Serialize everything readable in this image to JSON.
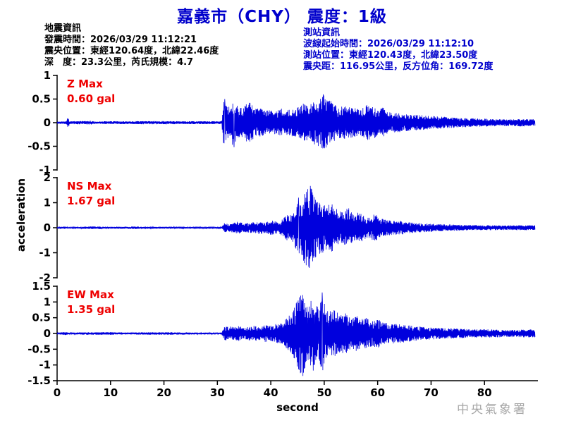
{
  "info_left": {
    "heading": "地震資訊",
    "lines": [
      "發震時間：2026/03/29 11:12:21",
      "震央位置：東經120.64度，北緯22.46度",
      "深　度：23.3公里，芮氏規模：4.7"
    ]
  },
  "info_right": {
    "heading": "測站資訊",
    "lines": [
      "波線起始時間：2026/03/29 11:12:10",
      "測站位置：東經120.43度，北緯23.50度",
      "震央距：116.95公里，反方位角：169.72度"
    ]
  },
  "footer": {
    "agency": "中央氣象署"
  },
  "chart_data": {
    "type": "line",
    "title": "嘉義市（CHY） 震度：1級",
    "intensity": "1級",
    "station_code": "CHY",
    "xlabel": "second",
    "ylabel": "acceleration",
    "x_range": [
      0,
      90
    ],
    "x_ticks": [
      0,
      10,
      20,
      30,
      40,
      50,
      60,
      70,
      80
    ],
    "grid": false,
    "trace_color": "#0000dd",
    "axis_color": "#000000",
    "max_label_color": "#ee0000",
    "series": [
      {
        "name": "Z",
        "max_label": "Z Max",
        "max_text": "0.60 gal",
        "max_value": 0.6,
        "unit": "gal",
        "ylim": [
          -1,
          1
        ],
        "yticks": [
          1,
          0.5,
          0,
          -0.5,
          -1
        ],
        "envelope": [
          [
            0,
            0.02
          ],
          [
            1.7,
            0.03
          ],
          [
            2.0,
            0.12
          ],
          [
            2.4,
            0.03
          ],
          [
            6.5,
            0.04
          ],
          [
            7.2,
            0.02
          ],
          [
            9,
            0.03
          ],
          [
            14,
            0.03
          ],
          [
            18,
            0.035
          ],
          [
            24,
            0.03
          ],
          [
            28,
            0.03
          ],
          [
            30.8,
            0.03
          ],
          [
            31.2,
            0.5
          ],
          [
            32,
            0.32
          ],
          [
            33,
            0.5
          ],
          [
            34,
            0.3
          ],
          [
            35,
            0.35
          ],
          [
            36,
            0.45
          ],
          [
            37,
            0.3
          ],
          [
            38,
            0.3
          ],
          [
            39,
            0.25
          ],
          [
            40,
            0.28
          ],
          [
            41,
            0.24
          ],
          [
            42,
            0.3
          ],
          [
            43,
            0.26
          ],
          [
            44,
            0.3
          ],
          [
            45,
            0.32
          ],
          [
            46,
            0.42
          ],
          [
            47,
            0.36
          ],
          [
            48,
            0.46
          ],
          [
            49,
            0.5
          ],
          [
            49.8,
            0.62
          ],
          [
            50.6,
            0.48
          ],
          [
            51.5,
            0.45
          ],
          [
            52.5,
            0.32
          ],
          [
            54,
            0.36
          ],
          [
            55.5,
            0.3
          ],
          [
            57,
            0.32
          ],
          [
            58.5,
            0.4
          ],
          [
            60,
            0.28
          ],
          [
            61,
            0.32
          ],
          [
            62,
            0.22
          ],
          [
            64,
            0.2
          ],
          [
            66,
            0.17
          ],
          [
            68,
            0.16
          ],
          [
            70,
            0.14
          ],
          [
            72,
            0.13
          ],
          [
            75,
            0.1
          ],
          [
            78,
            0.09
          ],
          [
            81,
            0.08
          ],
          [
            84,
            0.07
          ],
          [
            87,
            0.08
          ],
          [
            89.5,
            0.07
          ]
        ],
        "peaks": [
          {
            "t": 49.8,
            "v": 0.6
          },
          {
            "t": 33.1,
            "v": -0.52
          },
          {
            "t": 31.4,
            "v": 0.5
          }
        ]
      },
      {
        "name": "NS",
        "max_label": "NS Max",
        "max_text": "1.67 gal",
        "max_value": 1.67,
        "unit": "gal",
        "ylim": [
          -2,
          2
        ],
        "yticks": [
          2,
          1,
          0,
          -1,
          -2
        ],
        "envelope": [
          [
            0,
            0.02
          ],
          [
            1.3,
            0.05
          ],
          [
            2.1,
            0.02
          ],
          [
            6,
            0.05
          ],
          [
            8,
            0.05
          ],
          [
            9,
            0.03
          ],
          [
            15,
            0.05
          ],
          [
            16,
            0.03
          ],
          [
            21,
            0.04
          ],
          [
            25,
            0.03
          ],
          [
            30.8,
            0.03
          ],
          [
            31.3,
            0.18
          ],
          [
            32,
            0.15
          ],
          [
            33,
            0.2
          ],
          [
            34,
            0.25
          ],
          [
            35,
            0.17
          ],
          [
            36,
            0.2
          ],
          [
            37,
            0.22
          ],
          [
            38,
            0.26
          ],
          [
            39,
            0.2
          ],
          [
            40,
            0.3
          ],
          [
            41,
            0.24
          ],
          [
            42,
            0.3
          ],
          [
            43,
            0.5
          ],
          [
            44,
            0.55
          ],
          [
            45,
            0.95
          ],
          [
            46,
            1.35
          ],
          [
            46.7,
            1.55
          ],
          [
            47.4,
            1.67
          ],
          [
            48,
            1.35
          ],
          [
            48.7,
            1.15
          ],
          [
            49.5,
            1.05
          ],
          [
            50.5,
            0.9
          ],
          [
            51.5,
            0.95
          ],
          [
            52.5,
            0.7
          ],
          [
            53.5,
            0.62
          ],
          [
            54.5,
            0.8
          ],
          [
            55.5,
            0.55
          ],
          [
            56.5,
            0.65
          ],
          [
            57.5,
            0.45
          ],
          [
            58.5,
            0.42
          ],
          [
            59.5,
            0.55
          ],
          [
            60.5,
            0.38
          ],
          [
            62,
            0.3
          ],
          [
            64,
            0.28
          ],
          [
            66,
            0.22
          ],
          [
            68,
            0.18
          ],
          [
            70,
            0.16
          ],
          [
            72,
            0.14
          ],
          [
            75,
            0.12
          ],
          [
            78,
            0.1
          ],
          [
            81,
            0.1
          ],
          [
            84,
            0.09
          ],
          [
            87,
            0.1
          ],
          [
            89.5,
            0.09
          ]
        ],
        "peaks": [
          {
            "t": 47.4,
            "v": 1.67
          },
          {
            "t": 46.6,
            "v": -1.5
          },
          {
            "t": 45.2,
            "v": 1.2
          }
        ]
      },
      {
        "name": "EW",
        "max_label": "EW Max",
        "max_text": "1.35 gal",
        "max_value": 1.35,
        "unit": "gal",
        "ylim": [
          -1.5,
          1.5
        ],
        "yticks": [
          1.5,
          1,
          0.5,
          0,
          -0.5,
          -1,
          -1.5
        ],
        "envelope": [
          [
            0,
            0.02
          ],
          [
            1.5,
            0.05
          ],
          [
            2.3,
            0.02
          ],
          [
            5,
            0.04
          ],
          [
            10,
            0.04
          ],
          [
            14,
            0.03
          ],
          [
            18,
            0.04
          ],
          [
            22,
            0.04
          ],
          [
            26,
            0.03
          ],
          [
            30.8,
            0.03
          ],
          [
            31.3,
            0.2
          ],
          [
            32,
            0.24
          ],
          [
            33,
            0.2
          ],
          [
            34,
            0.24
          ],
          [
            35,
            0.17
          ],
          [
            36,
            0.22
          ],
          [
            37,
            0.25
          ],
          [
            38,
            0.2
          ],
          [
            39,
            0.27
          ],
          [
            40,
            0.24
          ],
          [
            41,
            0.3
          ],
          [
            42,
            0.32
          ],
          [
            43,
            0.5
          ],
          [
            44,
            0.65
          ],
          [
            44.8,
            1.0
          ],
          [
            45.6,
            1.28
          ],
          [
            46,
            1.35
          ],
          [
            46.6,
            1.0
          ],
          [
            47.2,
            0.9
          ],
          [
            47.9,
            1.2
          ],
          [
            48.5,
            0.88
          ],
          [
            49,
            0.8
          ],
          [
            49.6,
            1.3
          ],
          [
            50.2,
            0.85
          ],
          [
            51,
            0.7
          ],
          [
            52,
            0.75
          ],
          [
            53,
            0.6
          ],
          [
            54,
            0.66
          ],
          [
            55,
            0.5
          ],
          [
            56,
            0.56
          ],
          [
            57,
            0.46
          ],
          [
            58,
            0.5
          ],
          [
            59,
            0.4
          ],
          [
            60,
            0.46
          ],
          [
            61,
            0.36
          ],
          [
            62,
            0.32
          ],
          [
            63,
            0.33
          ],
          [
            65,
            0.28
          ],
          [
            67,
            0.23
          ],
          [
            69,
            0.2
          ],
          [
            71,
            0.18
          ],
          [
            73,
            0.16
          ],
          [
            75,
            0.15
          ],
          [
            78,
            0.13
          ],
          [
            81,
            0.13
          ],
          [
            84,
            0.11
          ],
          [
            87,
            0.12
          ],
          [
            89.5,
            0.13
          ]
        ],
        "peaks": [
          {
            "t": 46.0,
            "v": -1.35
          },
          {
            "t": 49.6,
            "v": 1.3
          },
          {
            "t": 45.6,
            "v": 1.2
          }
        ]
      }
    ]
  }
}
